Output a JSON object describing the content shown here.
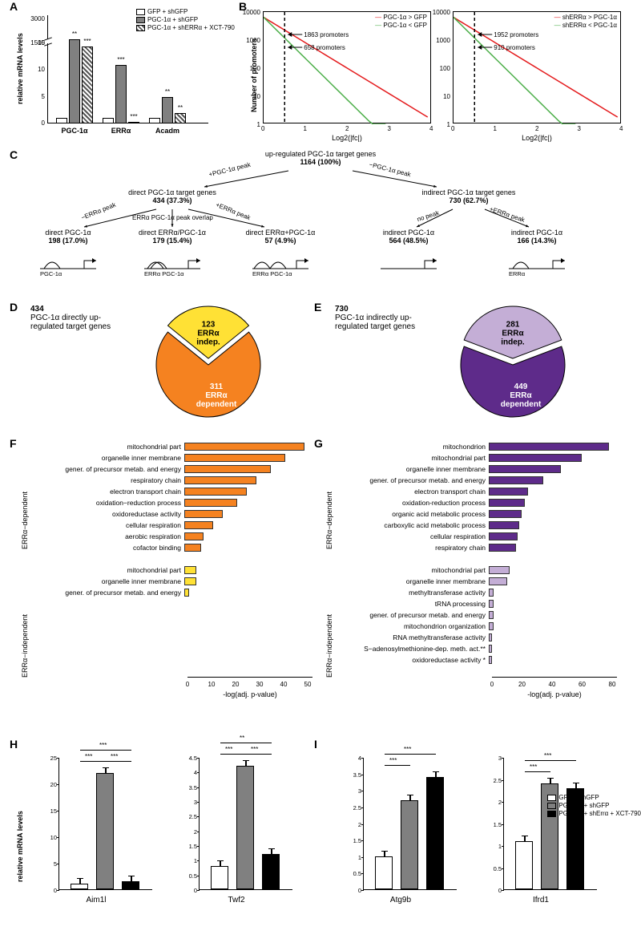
{
  "panelA": {
    "label": "A",
    "ylabel": "relative mRNA levels",
    "categories": [
      "PGC-1α",
      "ERRα",
      "Acadm"
    ],
    "legend": [
      {
        "label": "GFP + shGFP",
        "fill": "white"
      },
      {
        "label": "PGC-1α + shGFP",
        "fill": "gray"
      },
      {
        "label": "PGC-1α + shERRα + XCT-790",
        "fill": "hatch"
      }
    ],
    "groups": [
      {
        "values": [
          1,
          1750,
          1300
        ],
        "sig": [
          "",
          "**",
          "***"
        ],
        "upper": true
      },
      {
        "values": [
          1,
          11,
          0.3
        ],
        "sig": [
          "",
          "***",
          "***"
        ],
        "upper": false
      },
      {
        "values": [
          1,
          5,
          2
        ],
        "sig": [
          "",
          "**",
          "**"
        ],
        "upper": false
      }
    ],
    "lower_max": 15,
    "upper_min": 1500,
    "upper_max": 3000,
    "yticks_lower": [
      0,
      5,
      10,
      15
    ],
    "yticks_upper": [
      1500,
      3000
    ]
  },
  "panelB": {
    "label": "B",
    "ylabel": "Number of promoters",
    "xlabel": "Log2(|fc|)",
    "plots": [
      {
        "legend_red": "PGC-1α > GFP",
        "legend_green": "PGC-1α < GFP",
        "annot1": "1863 promoters",
        "annot2": "658 promoters",
        "dash_x": 0.5
      },
      {
        "legend_red": "shERRα > PGC-1α",
        "legend_green": "shERRα < PGC-1α",
        "annot1": "1952 promoters",
        "annot2": "910 promoters",
        "dash_x": 0.5
      }
    ],
    "ylog_ticks": [
      1,
      10,
      100,
      1000,
      10000
    ],
    "x_ticks": [
      0,
      1,
      2,
      3,
      4
    ],
    "colors": {
      "red": "#e41a1c",
      "green": "#4daf4a"
    }
  },
  "panelC": {
    "label": "C",
    "root": {
      "text": "up-regulated PGC-1α target genes",
      "count": "1164 (100%)"
    },
    "left": {
      "edge_l": "+PGC-1α peak",
      "node": {
        "text": "direct PGC-1α target genes",
        "count": "434 (37.3%)"
      },
      "children_edges": [
        "−ERRα peak",
        "ERRα PGC-1α peak overlap",
        "+ERRα peak"
      ],
      "children": [
        {
          "text": "direct PGC-1α",
          "count": "198 (17.0%)"
        },
        {
          "text": "direct ERRα/PGC-1α",
          "count": "179 (15.4%)"
        },
        {
          "text": "direct ERRα+PGC-1α",
          "count": "57 (4.9%)"
        }
      ]
    },
    "right": {
      "edge_r": "−PGC-1α peak",
      "node": {
        "text": "indirect PGC-1α target genes",
        "count": "730 (62.7%)"
      },
      "children_edges": [
        "no peak",
        "+ERRα peak"
      ],
      "children": [
        {
          "text": "indirect PGC-1α",
          "count": "564 (48.5%)"
        },
        {
          "text": "indirect PGC-1α",
          "count": "166 (14.3%)"
        }
      ]
    },
    "glyph_labels": [
      "PGC-1α",
      "ERRα PGC-1α",
      "ERRα PGC-1α",
      "",
      "ERRα"
    ]
  },
  "panelD": {
    "label": "D",
    "title_n": "434",
    "title_text": "PGC-1α directly up-regulated target genes",
    "slice_small": {
      "n": "123",
      "label": "ERRα indep.",
      "color": "#ffe135"
    },
    "slice_big": {
      "n": "311",
      "label": "ERRα dependent",
      "color": "#f58220"
    }
  },
  "panelE": {
    "label": "E",
    "title_n": "730",
    "title_text": "PGC-1α indirectly up-regulated target genes",
    "slice_small": {
      "n": "281",
      "label": "ERRα indep.",
      "color": "#c4aed6"
    },
    "slice_big": {
      "n": "449",
      "label": "ERRα dependent",
      "color": "#5e2b8a"
    }
  },
  "panelF": {
    "label": "F",
    "color_dep": "#f58220",
    "color_indep": "#ffe135",
    "xmax": 50,
    "xticks": [
      0,
      10,
      20,
      30,
      40,
      50
    ],
    "xlabel": "-log(adj. p-value)",
    "section_dep": "ERRα−dependent",
    "section_indep": "ERRα−independent",
    "terms_dep": [
      {
        "label": "mitochondrial part",
        "val": 50
      },
      {
        "label": "organelle inner membrane",
        "val": 42
      },
      {
        "label": "gener. of precursor metab. and energy",
        "val": 36
      },
      {
        "label": "respiratory chain",
        "val": 30
      },
      {
        "label": "electron transport chain",
        "val": 26
      },
      {
        "label": "oxidation−reduction process",
        "val": 22
      },
      {
        "label": "oxidoreductase activity",
        "val": 16
      },
      {
        "label": "cellular respiration",
        "val": 12
      },
      {
        "label": "aerobic respiration",
        "val": 8
      },
      {
        "label": "cofactor binding",
        "val": 7
      }
    ],
    "terms_indep": [
      {
        "label": "mitochondrial part",
        "val": 5
      },
      {
        "label": "organelle inner membrane",
        "val": 5
      },
      {
        "label": "gener. of precursor metab. and energy",
        "val": 2
      }
    ],
    "indep_empty_rows": 7
  },
  "panelG": {
    "label": "G",
    "color_dep": "#5e2b8a",
    "color_indep": "#c4aed6",
    "xmax": 80,
    "xticks": [
      0,
      20,
      40,
      60,
      80
    ],
    "xlabel": "-log(adj. p-value)",
    "section_dep": "ERRα−dependent",
    "section_indep": "ERRα−independent",
    "terms_dep": [
      {
        "label": "mitochondrion",
        "val": 80
      },
      {
        "label": "mitochondrial part",
        "val": 62
      },
      {
        "label": "organelle inner membrane",
        "val": 48
      },
      {
        "label": "gener. of precursor metab. and energy",
        "val": 36
      },
      {
        "label": "electron transport chain",
        "val": 26
      },
      {
        "label": "oxidation-reduction process",
        "val": 24
      },
      {
        "label": "organic acid metabolic process",
        "val": 22
      },
      {
        "label": "carboxylic acid metabolic process",
        "val": 20
      },
      {
        "label": "cellular respiration",
        "val": 19
      },
      {
        "label": "respiratory chain",
        "val": 18
      }
    ],
    "terms_indep": [
      {
        "label": "mitochondrial part",
        "val": 14
      },
      {
        "label": "organelle inner membrane",
        "val": 12
      },
      {
        "label": "methyltransferase activity",
        "val": 3
      },
      {
        "label": "tRNA processing",
        "val": 3
      },
      {
        "label": "gener. of precursor metab. and energy",
        "val": 3
      },
      {
        "label": "mitochondrion organization",
        "val": 3
      },
      {
        "label": "RNA methyltransferase activity",
        "val": 2
      },
      {
        "label": "S−adenosylmethionine-dep. meth. act.**",
        "val": 2
      },
      {
        "label": "oxidoreductase activity *",
        "val": 2
      }
    ],
    "indep_empty_rows": 1
  },
  "panelH": {
    "label": "H",
    "ylabel": "relative mRNA levels",
    "charts": [
      {
        "name": "Aim1l",
        "vals": [
          1,
          22,
          1.5
        ],
        "ymax": 25,
        "yticks": [
          0,
          5,
          10,
          15,
          20,
          25
        ],
        "sig_top": "***",
        "sig_left": "***",
        "sig_right": "***"
      },
      {
        "name": "Twf2",
        "vals": [
          0.8,
          4.2,
          1.2
        ],
        "ymax": 4.5,
        "yticks": [
          0,
          0.5,
          1.0,
          1.5,
          2.0,
          2.5,
          3.0,
          3.5,
          4.0,
          4.5
        ],
        "sig_top": "**",
        "sig_left": "***",
        "sig_right": "***"
      }
    ]
  },
  "panelI": {
    "label": "I",
    "ylabel": "relative mRNA levels",
    "legend": [
      {
        "label": "GFP + shGFP",
        "fill": "#ffffff"
      },
      {
        "label": "PGC-1α + shGFP",
        "fill": "#808080"
      },
      {
        "label": "PGC-1α + shErrα + XCT-790",
        "fill": "#000000"
      }
    ],
    "charts": [
      {
        "name": "Atg9b",
        "vals": [
          1,
          2.7,
          3.4
        ],
        "ymax": 4.0,
        "yticks": [
          0,
          0.5,
          1.0,
          1.5,
          2.0,
          2.5,
          3.0,
          3.5,
          4.0
        ],
        "sig_top": "***",
        "sig_left": "***"
      },
      {
        "name": "Ifrd1",
        "vals": [
          1.1,
          2.4,
          2.3
        ],
        "ymax": 3.0,
        "yticks": [
          0,
          0.5,
          1.0,
          1.5,
          2.0,
          2.5,
          3.0
        ],
        "sig_top": "***",
        "sig_left": "***"
      }
    ]
  },
  "colors": {
    "bar_white": "#ffffff",
    "bar_gray": "#808080",
    "bar_black": "#000000"
  }
}
